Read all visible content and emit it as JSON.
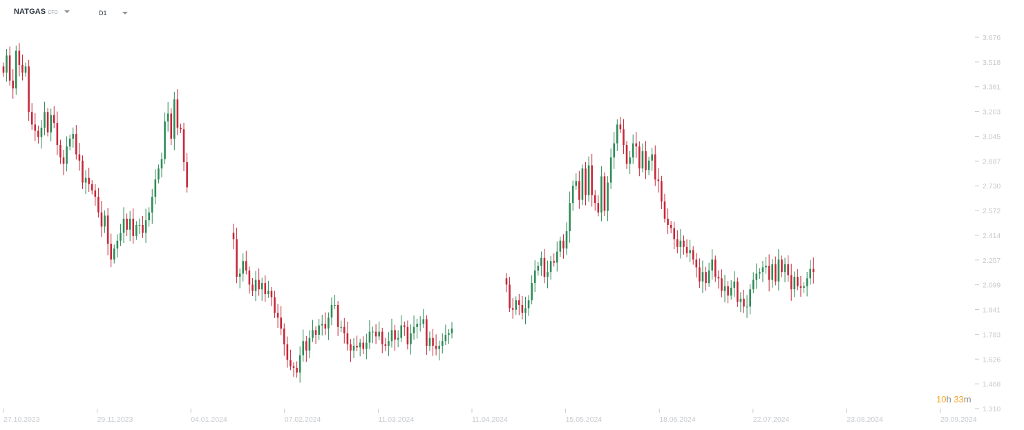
{
  "toolbar": {
    "symbol": "NATGAS",
    "symbol_type": "CFD",
    "timeframe": "D1"
  },
  "countdown": {
    "hours": "10",
    "h_unit": "h",
    "minutes": "33",
    "m_unit": "m"
  },
  "colors": {
    "up": "#2e8b57",
    "down": "#c62839",
    "tick": "#c6c9cd",
    "countdown": "#f5a623"
  },
  "chart_data": {
    "type": "candlestick",
    "title": "",
    "xlabel": "",
    "ylabel": "",
    "ylim": [
      1.31,
      3.676
    ],
    "y_ticks": [
      "3.676",
      "3.518",
      "3.361",
      "3.203",
      "3.045",
      "2.887",
      "2.730",
      "2.572",
      "2.414",
      "2.257",
      "2.099",
      "1.941",
      "1.783",
      "1.626",
      "1.468",
      "1.310"
    ],
    "x_ticks": [
      "27.10.2023",
      "29.11.2023",
      "04.01.2024",
      "07.02.2024",
      "11.03.2024",
      "11.04.2024",
      "15.05.2024",
      "18.06.2024",
      "22.07.2024",
      "23.08.2024",
      "20.09.2024"
    ],
    "grid": false,
    "segments": [
      {
        "closes": [
          3.45,
          3.56,
          3.4,
          3.35,
          3.59,
          3.5,
          3.45,
          3.49,
          3.2,
          3.12,
          3.08,
          3.04,
          3.1,
          3.2,
          3.07,
          3.18,
          3.13,
          2.99,
          2.91,
          2.87,
          2.98,
          3.03,
          3.06,
          2.93,
          2.89,
          2.75,
          2.78,
          2.74,
          2.7,
          2.66,
          2.56,
          2.47,
          2.54,
          2.36,
          2.26,
          2.33,
          2.38,
          2.43,
          2.52,
          2.45,
          2.52,
          2.41,
          2.48,
          2.48,
          2.43,
          2.51,
          2.56,
          2.66,
          2.77,
          2.84,
          2.9,
          3.14,
          3.19,
          3.03,
          3.28,
          3.1,
          3.09,
          2.88,
          2.72
        ]
      },
      {
        "closes": [
          2.39,
          2.15,
          2.17,
          2.25,
          2.19,
          2.1,
          2.06,
          2.13,
          2.07,
          2.11,
          2.04,
          2.06,
          2.02,
          1.92,
          1.89,
          1.82,
          1.72,
          1.62,
          1.58,
          1.57,
          1.54,
          1.65,
          1.74,
          1.68,
          1.76,
          1.81,
          1.78,
          1.84,
          1.85,
          1.82,
          1.89,
          1.97,
          1.97,
          1.83,
          1.83,
          1.79,
          1.72,
          1.68,
          1.71,
          1.7,
          1.73,
          1.69,
          1.73,
          1.8,
          1.8,
          1.77,
          1.8,
          1.72,
          1.71,
          1.74,
          1.81,
          1.75,
          1.76,
          1.84,
          1.83,
          1.72,
          1.79,
          1.83,
          1.85,
          1.85,
          1.88,
          1.71,
          1.76,
          1.71,
          1.69,
          1.71,
          1.74,
          1.78,
          1.79,
          1.82
        ]
      },
      {
        "closes": [
          2.1,
          1.95,
          1.94,
          2.0,
          1.97,
          1.92,
          1.95,
          2.0,
          2.11,
          2.19,
          2.22,
          2.27,
          2.15,
          2.18,
          2.25,
          2.24,
          2.31,
          2.38,
          2.33,
          2.44,
          2.62,
          2.73,
          2.76,
          2.64,
          2.84,
          2.67,
          2.86,
          2.67,
          2.62,
          2.56,
          2.79,
          2.57,
          2.75,
          2.91,
          3.0,
          3.12,
          3.09,
          2.99,
          2.87,
          2.91,
          3.0,
          2.98,
          2.84,
          2.95,
          2.83,
          2.89,
          2.93,
          2.77,
          2.76,
          2.63,
          2.52,
          2.48,
          2.46,
          2.39,
          2.34,
          2.38,
          2.34,
          2.3,
          2.32,
          2.26,
          2.21,
          2.12,
          2.18,
          2.11,
          2.19,
          2.26,
          2.15,
          2.14,
          2.06,
          2.09,
          2.03,
          2.08,
          2.12,
          1.99,
          2.01,
          1.96,
          1.96,
          2.07,
          2.13,
          2.17,
          2.18,
          2.21,
          2.22,
          2.13,
          2.23,
          2.12,
          2.26,
          2.18,
          2.23,
          2.16,
          2.07,
          2.15,
          2.09,
          2.08,
          2.09,
          2.14,
          2.2,
          2.18
        ]
      }
    ]
  }
}
